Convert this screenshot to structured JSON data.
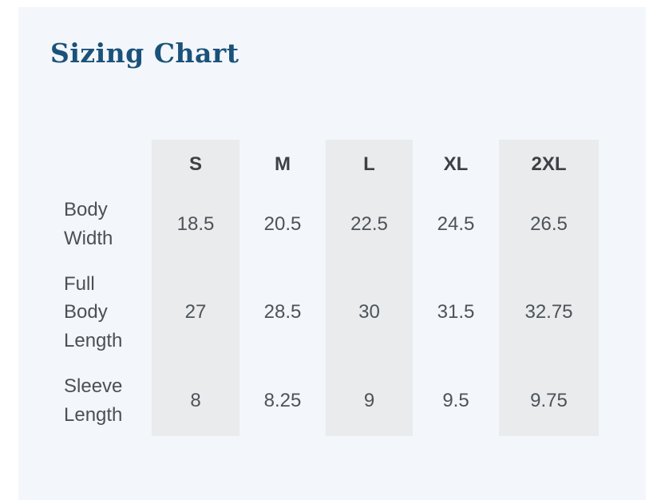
{
  "page": {
    "title": "Sizing Chart"
  },
  "colors": {
    "page_bg": "#ffffff",
    "panel_bg": "#f3f6fa",
    "band_bg": "#e9ebec",
    "title_text": "#1a527a",
    "header_text": "#3d4145",
    "body_text": "#4a5056"
  },
  "sizing_table": {
    "columns": [
      "S",
      "M",
      "L",
      "XL",
      "2XL"
    ],
    "shaded_columns": [
      "S",
      "L",
      "2XL"
    ],
    "rows": [
      {
        "label": "Body Width",
        "values": [
          "18.5",
          "20.5",
          "22.5",
          "24.5",
          "26.5"
        ]
      },
      {
        "label": "Full Body Length",
        "values": [
          "27",
          "28.5",
          "30",
          "31.5",
          "32.75"
        ]
      },
      {
        "label": "Sleeve Length",
        "values": [
          "8",
          "8.25",
          "9",
          "9.5",
          "9.75"
        ]
      }
    ]
  }
}
